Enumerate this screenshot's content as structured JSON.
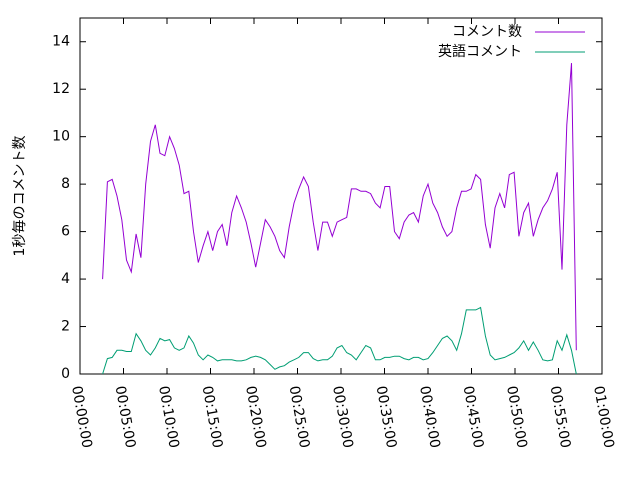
{
  "chart_data": {
    "type": "line",
    "y_label": "1秒毎のコメント数",
    "x": [
      2.6,
      3.15,
      3.7,
      4.25,
      4.8,
      5.35,
      5.9,
      6.45,
      7,
      7.55,
      8.1,
      8.65,
      9.2,
      9.75,
      10.3,
      10.85,
      11.4,
      11.95,
      12.5,
      13.05,
      13.6,
      14.15,
      14.7,
      15.25,
      15.8,
      16.35,
      16.9,
      17.45,
      18,
      18.55,
      19.1,
      19.65,
      20.2,
      20.75,
      21.3,
      21.85,
      22.4,
      22.95,
      23.5,
      24.05,
      24.6,
      25.15,
      25.7,
      26.25,
      26.8,
      27.35,
      27.9,
      28.45,
      29,
      29.55,
      30.1,
      30.65,
      31.2,
      31.75,
      32.3,
      32.85,
      33.4,
      33.95,
      34.5,
      35.05,
      35.6,
      36.15,
      36.7,
      37.25,
      37.8,
      38.35,
      38.9,
      39.45,
      40,
      40.55,
      41.1,
      41.65,
      42.2,
      42.75,
      43.3,
      43.85,
      44.4,
      44.95,
      45.5,
      46.05,
      46.6,
      47.15,
      47.7,
      48.25,
      48.8,
      49.35,
      49.9,
      50.45,
      51,
      51.55,
      52.1,
      52.65,
      53.2,
      53.75,
      54.3,
      54.85,
      55.4,
      55.95,
      56.5,
      57.05
    ],
    "series": [
      {
        "name": "コメント数",
        "color": "#9400d3",
        "values": [
          4.0,
          8.1,
          8.2,
          7.5,
          6.5,
          4.8,
          4.3,
          5.9,
          4.9,
          8.0,
          9.8,
          10.5,
          9.3,
          9.2,
          10.0,
          9.5,
          8.8,
          7.6,
          7.7,
          6.0,
          4.7,
          5.4,
          6.0,
          5.2,
          6.0,
          6.3,
          5.4,
          6.8,
          7.5,
          7.0,
          6.4,
          5.5,
          4.5,
          5.5,
          6.5,
          6.2,
          5.8,
          5.2,
          4.9,
          6.2,
          7.2,
          7.8,
          8.3,
          7.9,
          6.4,
          5.2,
          6.4,
          6.4,
          5.8,
          6.4,
          6.5,
          6.6,
          7.8,
          7.8,
          7.7,
          7.7,
          7.6,
          7.2,
          7.0,
          7.9,
          7.9,
          6.0,
          5.7,
          6.4,
          6.7,
          6.8,
          6.4,
          7.5,
          8.0,
          7.2,
          6.8,
          6.2,
          5.8,
          6.0,
          7.0,
          7.7,
          7.7,
          7.8,
          8.4,
          8.2,
          6.3,
          5.3,
          7.0,
          7.6,
          7.0,
          8.4,
          8.5,
          5.8,
          6.8,
          7.2,
          5.8,
          6.5,
          7.0,
          7.3,
          7.8,
          8.5,
          4.4,
          10.5,
          13.1,
          1.0
        ]
      },
      {
        "name": "英語コメント",
        "color": "#009e73",
        "values": [
          0.0,
          0.65,
          0.7,
          1.0,
          1.0,
          0.95,
          0.95,
          1.7,
          1.4,
          1.0,
          0.8,
          1.1,
          1.5,
          1.4,
          1.45,
          1.1,
          1.0,
          1.1,
          1.6,
          1.3,
          0.8,
          0.6,
          0.8,
          0.7,
          0.55,
          0.6,
          0.6,
          0.6,
          0.55,
          0.55,
          0.6,
          0.7,
          0.75,
          0.7,
          0.6,
          0.4,
          0.2,
          0.3,
          0.35,
          0.5,
          0.6,
          0.7,
          0.9,
          0.9,
          0.65,
          0.55,
          0.6,
          0.6,
          0.75,
          1.1,
          1.2,
          0.9,
          0.8,
          0.6,
          0.9,
          1.2,
          1.1,
          0.6,
          0.6,
          0.7,
          0.7,
          0.75,
          0.75,
          0.65,
          0.6,
          0.7,
          0.7,
          0.6,
          0.65,
          0.9,
          1.2,
          1.5,
          1.6,
          1.4,
          1.0,
          1.7,
          2.7,
          2.7,
          2.7,
          2.8,
          1.6,
          0.8,
          0.6,
          0.65,
          0.7,
          0.8,
          0.9,
          1.1,
          1.4,
          1.0,
          1.35,
          1.0,
          0.6,
          0.55,
          0.6,
          1.4,
          1.0,
          1.65,
          1.0,
          0.0
        ]
      }
    ],
    "xlim": [
      0,
      60
    ],
    "xticks": [
      {
        "value": 0,
        "label": "00:00:00"
      },
      {
        "value": 5,
        "label": "00:05:00"
      },
      {
        "value": 10,
        "label": "00:10:00"
      },
      {
        "value": 15,
        "label": "00:15:00"
      },
      {
        "value": 20,
        "label": "00:20:00"
      },
      {
        "value": 25,
        "label": "00:25:00"
      },
      {
        "value": 30,
        "label": "00:30:00"
      },
      {
        "value": 35,
        "label": "00:35:00"
      },
      {
        "value": 40,
        "label": "00:40:00"
      },
      {
        "value": 45,
        "label": "00:45:00"
      },
      {
        "value": 50,
        "label": "00:50:00"
      },
      {
        "value": 55,
        "label": "00:55:00"
      },
      {
        "value": 60,
        "label": "01:00:00"
      }
    ],
    "ylim": [
      0,
      15
    ],
    "yticks": [
      0,
      2,
      4,
      6,
      8,
      10,
      12,
      14
    ],
    "legend": "top-right"
  }
}
